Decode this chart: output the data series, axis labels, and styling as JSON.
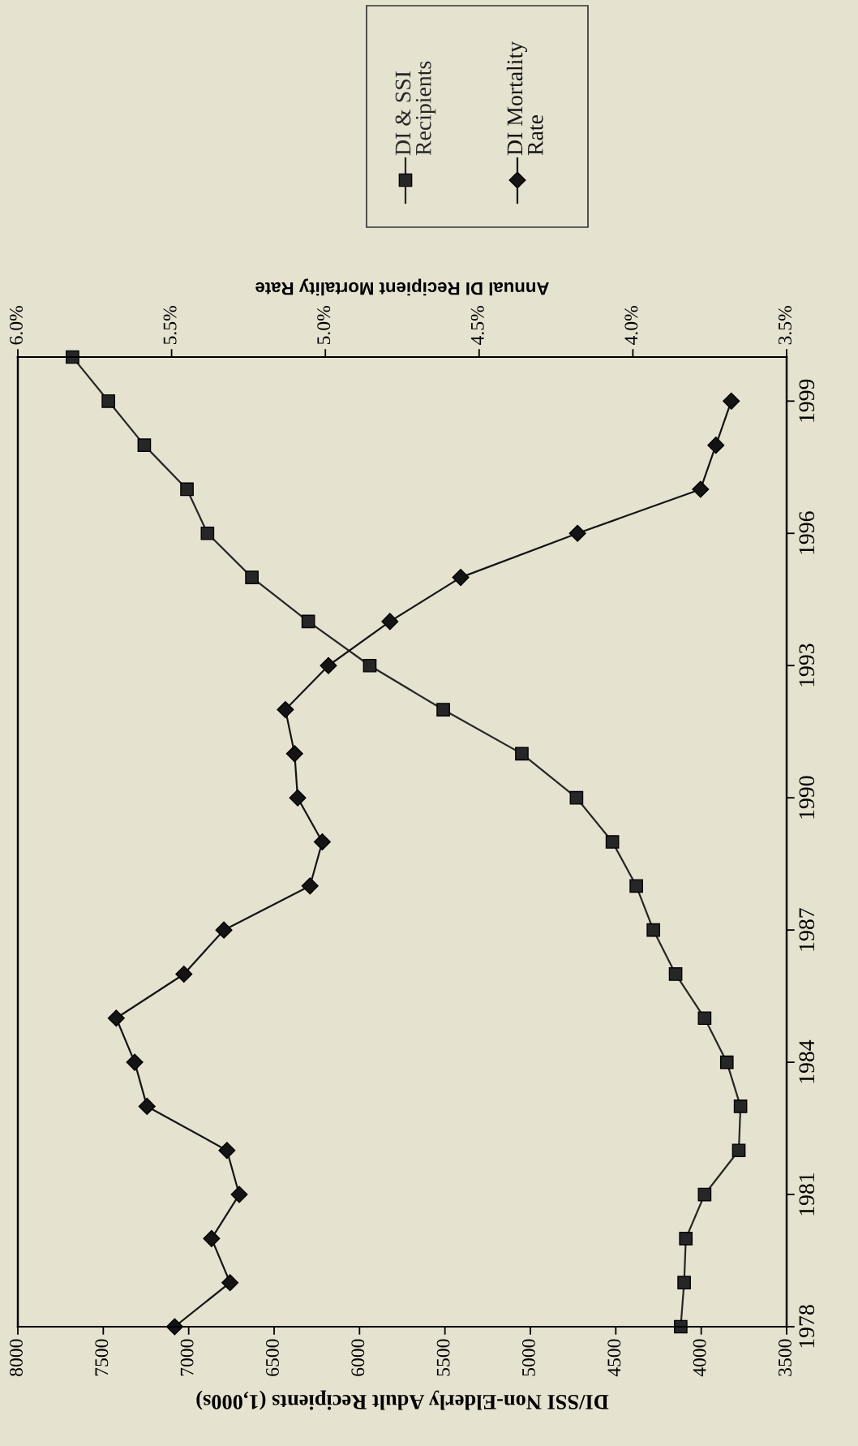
{
  "chart_data": {
    "type": "line",
    "xlabel": "DI/SSI Non-Elderly Adult Recipients (1,000s)",
    "x2label": "Annual DI Recipient Mortality Rate",
    "xlim": [
      8000,
      3500
    ],
    "xticks": [
      8000,
      7500,
      7000,
      6500,
      6000,
      5500,
      5000,
      4500,
      4000,
      3500
    ],
    "x2lim": [
      6.0,
      3.5
    ],
    "x2ticks": [
      {
        "value": 6.0,
        "label": "6.0%"
      },
      {
        "value": 5.5,
        "label": "5.5%"
      },
      {
        "value": 5.0,
        "label": "5.0%"
      },
      {
        "value": 4.5,
        "label": "4.5%"
      },
      {
        "value": 4.0,
        "label": "4.0%"
      },
      {
        "value": 3.5,
        "label": "3.5%"
      }
    ],
    "ylim": [
      1978,
      2000
    ],
    "yticks": [
      1978,
      1981,
      1984,
      1987,
      1990,
      1993,
      1996,
      1999
    ],
    "legend": "top",
    "series": [
      {
        "name": "DI & SSI Recipients",
        "color": "#262626",
        "marker": "square",
        "x": [
          4120,
          4100,
          4090,
          3980,
          3780,
          3770,
          3850,
          3980,
          4150,
          4280,
          4380,
          4520,
          4730,
          5050,
          5510,
          5940,
          6300,
          6630,
          6890,
          7010,
          7260,
          7470,
          7680
        ],
        "values": [
          1978,
          1979,
          1980,
          1981,
          1982,
          1983,
          1984,
          1985,
          1986,
          1987,
          1988,
          1989,
          1990,
          1991,
          1992,
          1993,
          1994,
          1995,
          1996,
          1997,
          1998,
          1999,
          2000
        ]
      },
      {
        "name": "DI Mortality Rate",
        "color": "#141414",
        "marker": "diamond",
        "axis": "x2",
        "x": [
          5.49,
          5.31,
          5.37,
          5.28,
          5.32,
          5.58,
          5.62,
          5.68,
          5.46,
          5.33,
          5.05,
          5.01,
          5.09,
          5.1,
          5.13,
          4.99,
          4.79,
          4.56,
          4.18,
          3.78,
          3.73,
          3.68
        ],
        "values": [
          1978,
          1979,
          1980,
          1981,
          1982,
          1983,
          1984,
          1985,
          1986,
          1987,
          1988,
          1989,
          1990,
          1991,
          1992,
          1993,
          1994,
          1995,
          1996,
          1997,
          1998,
          1999
        ]
      }
    ]
  }
}
